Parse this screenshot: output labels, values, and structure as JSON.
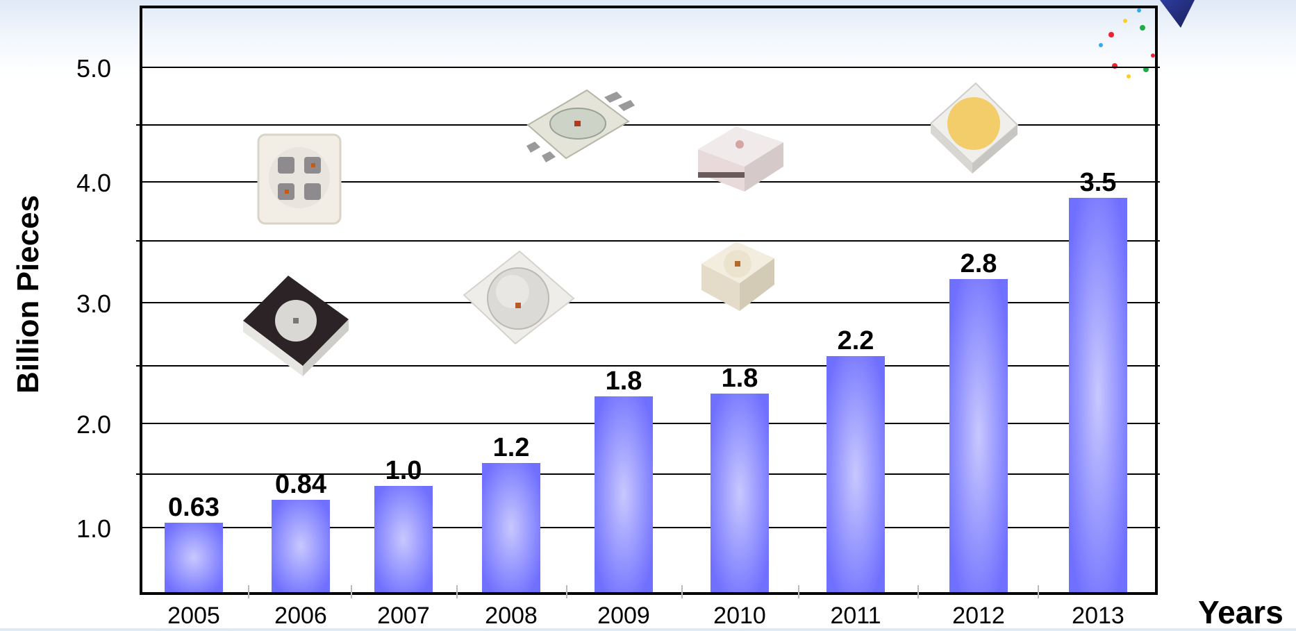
{
  "chart_data": {
    "type": "bar",
    "title": "",
    "xlabel": "Years",
    "ylabel": "Billion Pieces",
    "categories": [
      "2005",
      "2006",
      "2007",
      "2008",
      "2009",
      "2010",
      "2011",
      "2012",
      "2013"
    ],
    "values": [
      0.63,
      0.84,
      1.0,
      1.2,
      1.8,
      1.8,
      2.2,
      2.8,
      3.5
    ],
    "data_labels": [
      "0.63",
      "0.84",
      "1.0",
      "1.2",
      "1.8",
      "1.8",
      "2.2",
      "2.8",
      "3.5"
    ],
    "y_tick_labels": [
      "1.0",
      "2.0",
      "3.0",
      "4.0",
      "5.0"
    ],
    "bar_color": "#7b7bff",
    "grid": true,
    "legend": "none"
  },
  "decorations": {
    "product_images": [
      "led-package-icon",
      "led-package-icon",
      "led-package-icon",
      "led-package-icon",
      "led-package-icon",
      "led-package-icon",
      "led-package-icon"
    ]
  }
}
